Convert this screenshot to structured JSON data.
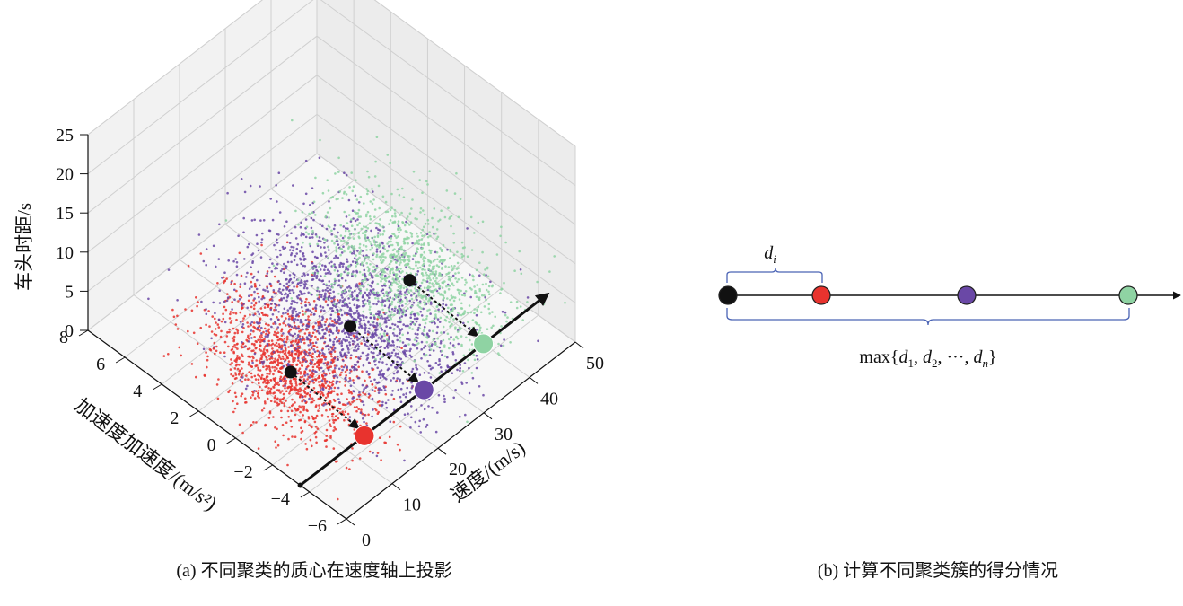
{
  "chart_data": [
    {
      "type": "scatter",
      "projection": "3d",
      "caption": "(a) 不同聚类的质心在速度轴上投影",
      "xlabel": "速度/(m/s)",
      "ylabel": "加速度加速度/(m/s²)",
      "zlabel": "车头时距/s",
      "xticks": [
        "0",
        "10",
        "20",
        "30",
        "40",
        "50"
      ],
      "yticks": [
        "−6",
        "−4",
        "−2",
        "0",
        "2",
        "4",
        "6",
        "8"
      ],
      "zticks": [
        "0",
        "5",
        "10",
        "15",
        "20",
        "25"
      ],
      "xlim": [
        0,
        50
      ],
      "ylim": [
        -6,
        8
      ],
      "zlim": [
        0,
        25
      ],
      "grid": true,
      "series": [
        {
          "color": "#e8332e",
          "centroid": {
            "x": 12,
            "y": 0,
            "z": 3
          }
        },
        {
          "color": "#6a48a6",
          "centroid": {
            "x": 25,
            "y": 0,
            "z": 3
          }
        },
        {
          "color": "#8fd3a3",
          "centroid": {
            "x": 38,
            "y": 0,
            "z": 3
          }
        }
      ],
      "centroid_color": "#111111"
    },
    {
      "type": "line",
      "caption": "(b) 计算不同聚类簇的得分情况",
      "points": [
        {
          "color": "#111111"
        },
        {
          "color": "#e8332e"
        },
        {
          "color": "#6a48a6"
        },
        {
          "color": "#8fd3a3"
        }
      ],
      "brace_top_label": "d_i",
      "brace_bottom_label": "max{d_1, d_2, ···, d_n}"
    }
  ]
}
